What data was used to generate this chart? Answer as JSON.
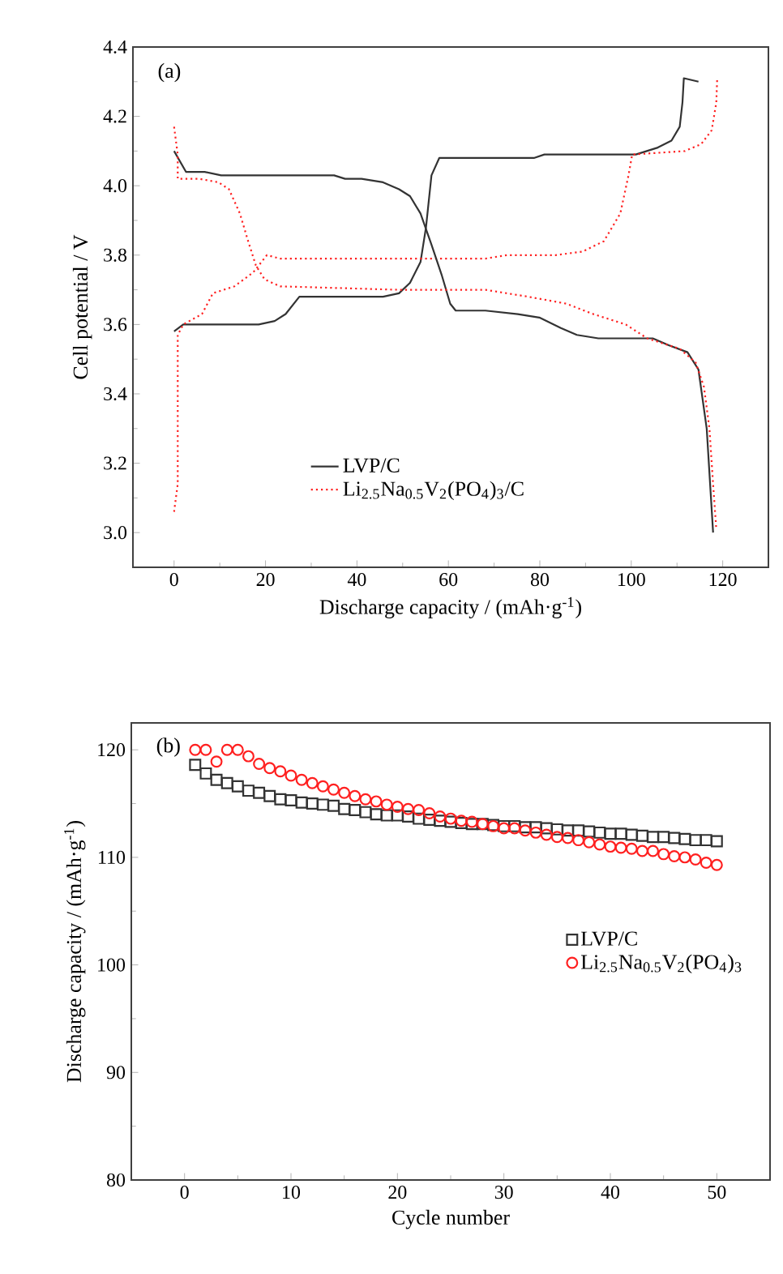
{
  "chart_data": [
    {
      "type": "line",
      "xlabel": "Discharge capacity / (mAh·g$^{-1}$)",
      "ylabel": "Cell potential / V",
      "annotations": [
        "(a)"
      ],
      "xlim": [
        -9,
        130
      ],
      "ylim": [
        2.9,
        4.4
      ],
      "xticks": [
        0,
        20,
        40,
        60,
        80,
        100,
        120
      ],
      "yticks": [
        {
          "value": 3.0,
          "label": "3.0"
        },
        3.2,
        3.4,
        3.6,
        3.8,
        {
          "value": 4.0,
          "label": "4.0"
        },
        4.2,
        4.4
      ],
      "legend": "bottom",
      "grid": false,
      "series": [
        {
          "name": "LVP/C",
          "color": "#333333",
          "line_style": "solid",
          "x": [
            0,
            2,
            18.5,
            22,
            24.4,
            27.4,
            45.7,
            49.2,
            51.6,
            53.9,
            55.1,
            56.3,
            58,
            78.7,
            81,
            101,
            105.8,
            108.8,
            110.6,
            111.2,
            111.5,
            114.7
          ],
          "values": [
            3.58,
            3.6,
            3.6,
            3.61,
            3.63,
            3.68,
            3.68,
            3.69,
            3.72,
            3.78,
            3.88,
            4.03,
            4.08,
            4.08,
            4.09,
            4.09,
            4.11,
            4.13,
            4.17,
            4.24,
            4.31,
            4.3
          ]
        },
        {
          "name": "Li$_{2.5}$Na$_{0.5}$V$_{2}$(PO$_{4}$)$_{3}$/C",
          "color": "#ff2020",
          "line_style": "dotted",
          "x": [
            0,
            0.8,
            0.8,
            2,
            6.1,
            8.5,
            13.2,
            17.3,
            20.3,
            23.2,
            68.1,
            72.8,
            83.4,
            89.3,
            94,
            97.6,
            99.4,
            100.2,
            111.7,
            115.3,
            117.6,
            118.6,
            118.8
          ],
          "values": [
            3.06,
            3.14,
            3.57,
            3.6,
            3.63,
            3.69,
            3.71,
            3.75,
            3.8,
            3.79,
            3.79,
            3.8,
            3.8,
            3.81,
            3.84,
            3.92,
            4.03,
            4.09,
            4.1,
            4.12,
            4.16,
            4.24,
            4.31
          ]
        },
        {
          "color": "#333333",
          "line_style": "solid",
          "x": [
            0,
            2.6,
            6.7,
            10.3,
            35,
            37.4,
            41,
            45.7,
            49.2,
            51.6,
            53.9,
            56.3,
            58.6,
            60.4,
            61.6,
            68.1,
            75.2,
            79.9,
            84.6,
            88.1,
            92.8,
            104.7,
            108.2,
            112.3,
            114.7,
            116.5,
            117.9
          ],
          "values": [
            4.1,
            4.04,
            4.04,
            4.03,
            4.03,
            4.02,
            4.02,
            4.01,
            3.99,
            3.97,
            3.92,
            3.83,
            3.74,
            3.66,
            3.64,
            3.64,
            3.63,
            3.62,
            3.59,
            3.57,
            3.56,
            3.56,
            3.54,
            3.52,
            3.47,
            3.3,
            3.0
          ]
        },
        {
          "color": "#ff2020",
          "line_style": "dotted",
          "x": [
            0,
            0.8,
            0.8,
            5.5,
            9.7,
            12,
            14.4,
            16.2,
            17.9,
            19.8,
            23.2,
            49.2,
            68.1,
            77.5,
            85.8,
            91.7,
            98.8,
            103.5,
            110.6,
            114.1,
            115.9,
            117.1,
            117.9,
            118.6
          ],
          "values": [
            4.17,
            4.09,
            4.02,
            4.02,
            4.01,
            3.99,
            3.92,
            3.84,
            3.77,
            3.73,
            3.71,
            3.7,
            3.7,
            3.68,
            3.66,
            3.63,
            3.6,
            3.56,
            3.53,
            3.49,
            3.42,
            3.3,
            3.14,
            3.01
          ]
        }
      ]
    },
    {
      "type": "scatter",
      "xlabel": "Cycle number",
      "ylabel": "Discharge capacity / (mAh·g$^{-1}$)",
      "annotations": [
        "(b)"
      ],
      "xlim": [
        -5,
        55
      ],
      "ylim": [
        80,
        122.5
      ],
      "xticks": [
        0,
        10,
        20,
        30,
        40,
        50
      ],
      "yticks": [
        80,
        90,
        100,
        110,
        120
      ],
      "legend": "right",
      "grid": false,
      "x": [
        1,
        2,
        3,
        4,
        5,
        6,
        7,
        8,
        9,
        10,
        11,
        12,
        13,
        14,
        15,
        16,
        17,
        18,
        19,
        20,
        21,
        22,
        23,
        24,
        25,
        26,
        27,
        28,
        29,
        30,
        31,
        32,
        33,
        34,
        35,
        36,
        37,
        38,
        39,
        40,
        41,
        42,
        43,
        44,
        45,
        46,
        47,
        48,
        49,
        50
      ],
      "series": [
        {
          "name": "LVP/C",
          "color": "#333333",
          "marker": "square",
          "values": [
            118.6,
            117.8,
            117.2,
            116.9,
            116.6,
            116.2,
            116.0,
            115.7,
            115.4,
            115.3,
            115.1,
            115.0,
            114.9,
            114.8,
            114.5,
            114.4,
            114.2,
            114.0,
            113.9,
            113.9,
            113.8,
            113.6,
            113.5,
            113.4,
            113.3,
            113.2,
            113.1,
            113.1,
            113.0,
            112.9,
            112.9,
            112.8,
            112.8,
            112.7,
            112.6,
            112.5,
            112.5,
            112.4,
            112.3,
            112.2,
            112.2,
            112.1,
            112.0,
            111.9,
            111.9,
            111.8,
            111.7,
            111.6,
            111.6,
            111.5
          ]
        },
        {
          "name": "Li$_{2.5}$Na$_{0.5}$V$_{2}$(PO$_{4}$)$_{3}$",
          "color": "#ff2020",
          "marker": "circle",
          "values": [
            120.0,
            120.0,
            118.9,
            120.0,
            120.0,
            119.4,
            118.7,
            118.3,
            118.0,
            117.6,
            117.2,
            116.9,
            116.6,
            116.3,
            116.0,
            115.7,
            115.4,
            115.2,
            114.9,
            114.7,
            114.5,
            114.4,
            114.1,
            113.8,
            113.6,
            113.4,
            113.3,
            113.1,
            112.9,
            112.7,
            112.7,
            112.5,
            112.3,
            112.1,
            111.9,
            111.8,
            111.6,
            111.4,
            111.2,
            111.0,
            110.9,
            110.8,
            110.6,
            110.6,
            110.3,
            110.1,
            110.0,
            109.8,
            109.5,
            109.3
          ]
        }
      ]
    }
  ]
}
